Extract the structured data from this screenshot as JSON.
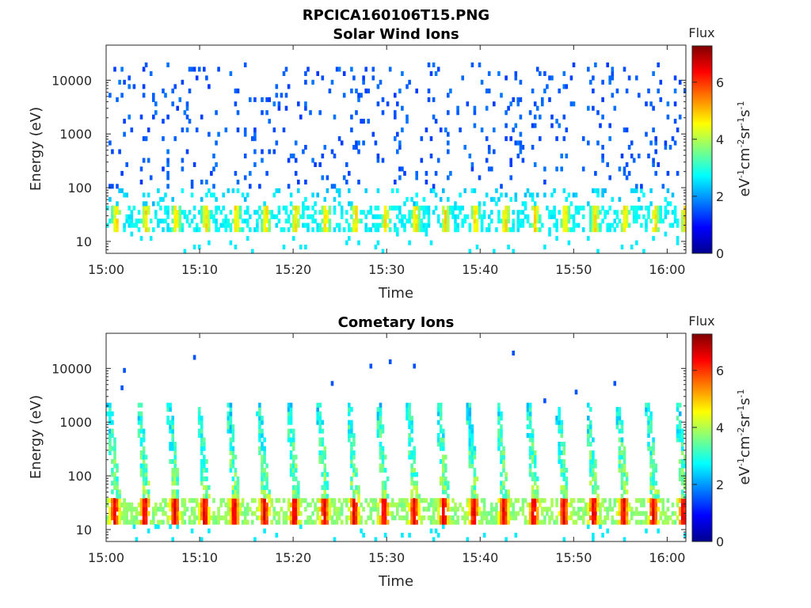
{
  "figure_title": "RPCICA160106T15.PNG",
  "chart_data": [
    {
      "type": "heatmap",
      "title": "Solar Wind Ions",
      "xlabel": "Time",
      "ylabel": "Energy (eV)",
      "x_ticks": [
        "15:00",
        "15:10",
        "15:20",
        "15:30",
        "15:40",
        "15:50",
        "16:00"
      ],
      "y_ticks": [
        "10",
        "100",
        "1000",
        "10000"
      ],
      "y_scale": "log",
      "xlim": [
        "15:00",
        "16:02"
      ],
      "ylim": [
        6,
        45000
      ],
      "colorbar": {
        "label": "Flux",
        "units": "eV-1cm-2sr-1s-1",
        "range": [
          0,
          7.3
        ],
        "ticks": [
          "0",
          "2",
          "4",
          "6"
        ]
      },
      "pattern": {
        "period_min": 3.2,
        "low_energy_band_eV": [
          15,
          45
        ],
        "low_energy_peak_level": 4.6,
        "scattered_hits_eV": [
          100,
          20000
        ],
        "scattered_level": 1.7
      }
    },
    {
      "type": "heatmap",
      "title": "Cometary Ions",
      "xlabel": "Time",
      "ylabel": "Energy (eV)",
      "x_ticks": [
        "15:00",
        "15:10",
        "15:20",
        "15:30",
        "15:40",
        "15:50",
        "16:00"
      ],
      "y_ticks": [
        "10",
        "100",
        "1000",
        "10000"
      ],
      "y_scale": "log",
      "xlim": [
        "15:00",
        "16:02"
      ],
      "ylim": [
        6,
        45000
      ],
      "colorbar": {
        "label": "Flux",
        "units": "eV-1cm-2sr-1s-1",
        "range": [
          0,
          7.3
        ],
        "ticks": [
          "0",
          "2",
          "4",
          "6"
        ]
      },
      "pattern": {
        "period_min": 3.2,
        "low_energy_band_eV": [
          12,
          40
        ],
        "low_energy_peak_level": 6.3,
        "streak_top_eV": 2500,
        "streak_level": 3.0
      }
    }
  ]
}
